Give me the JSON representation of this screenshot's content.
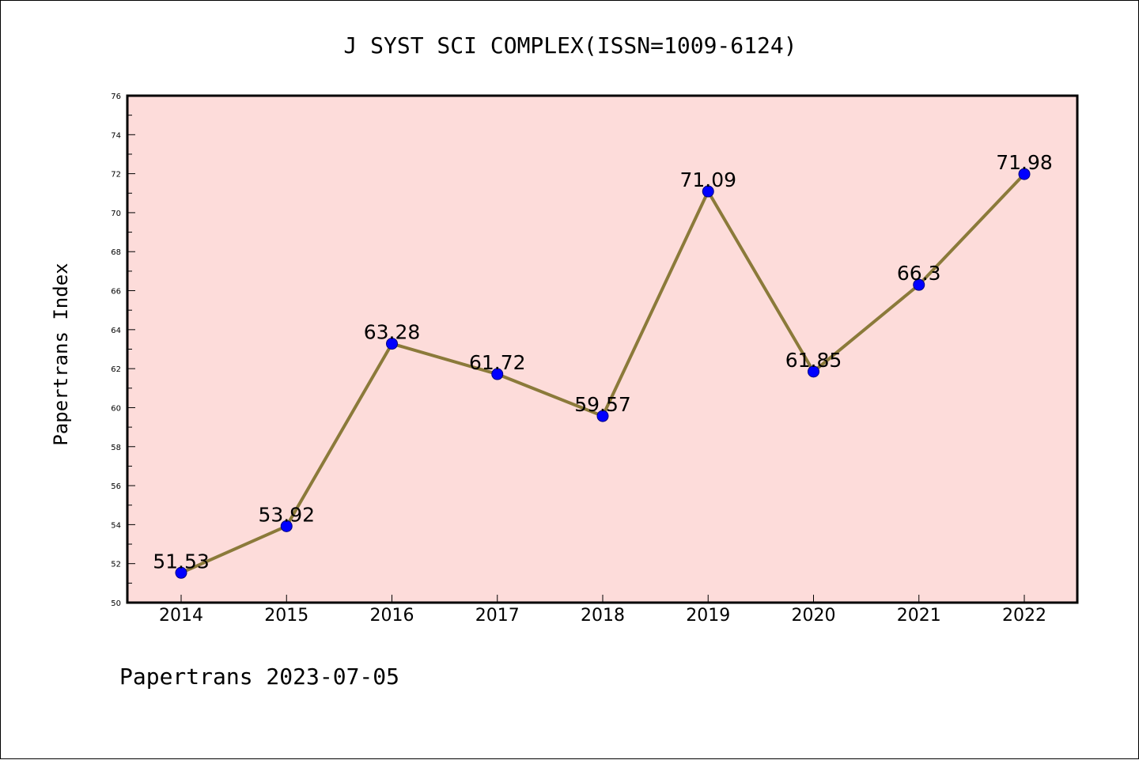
{
  "chart_data": {
    "type": "line",
    "title": "J SYST SCI COMPLEX(ISSN=1009-6124)",
    "ylabel": "Papertrans Index",
    "xlabel": "",
    "categories": [
      "2014",
      "2015",
      "2016",
      "2017",
      "2018",
      "2019",
      "2020",
      "2021",
      "2022"
    ],
    "series": [
      {
        "values": [
          51.53,
          53.92,
          63.28,
          61.72,
          59.57,
          71.09,
          61.85,
          66.3,
          71.98
        ],
        "labels": [
          "51.53",
          "53.92",
          "63.28",
          "61.72",
          "59.57",
          "71.09",
          "61.85",
          "66.3",
          "71.98"
        ]
      }
    ],
    "ylim": [
      50,
      76
    ],
    "y_ticks": [
      "50",
      "52",
      "54",
      "56",
      "58",
      "60",
      "62",
      "64",
      "66",
      "68",
      "70",
      "72",
      "74",
      "76"
    ],
    "grid": false,
    "colors": {
      "plot_background": "#fddcda",
      "line": "#8b7a3a",
      "marker": "#0000ff",
      "axes": "#000000"
    }
  },
  "footer": {
    "text": "Papertrans 2023-07-05"
  }
}
